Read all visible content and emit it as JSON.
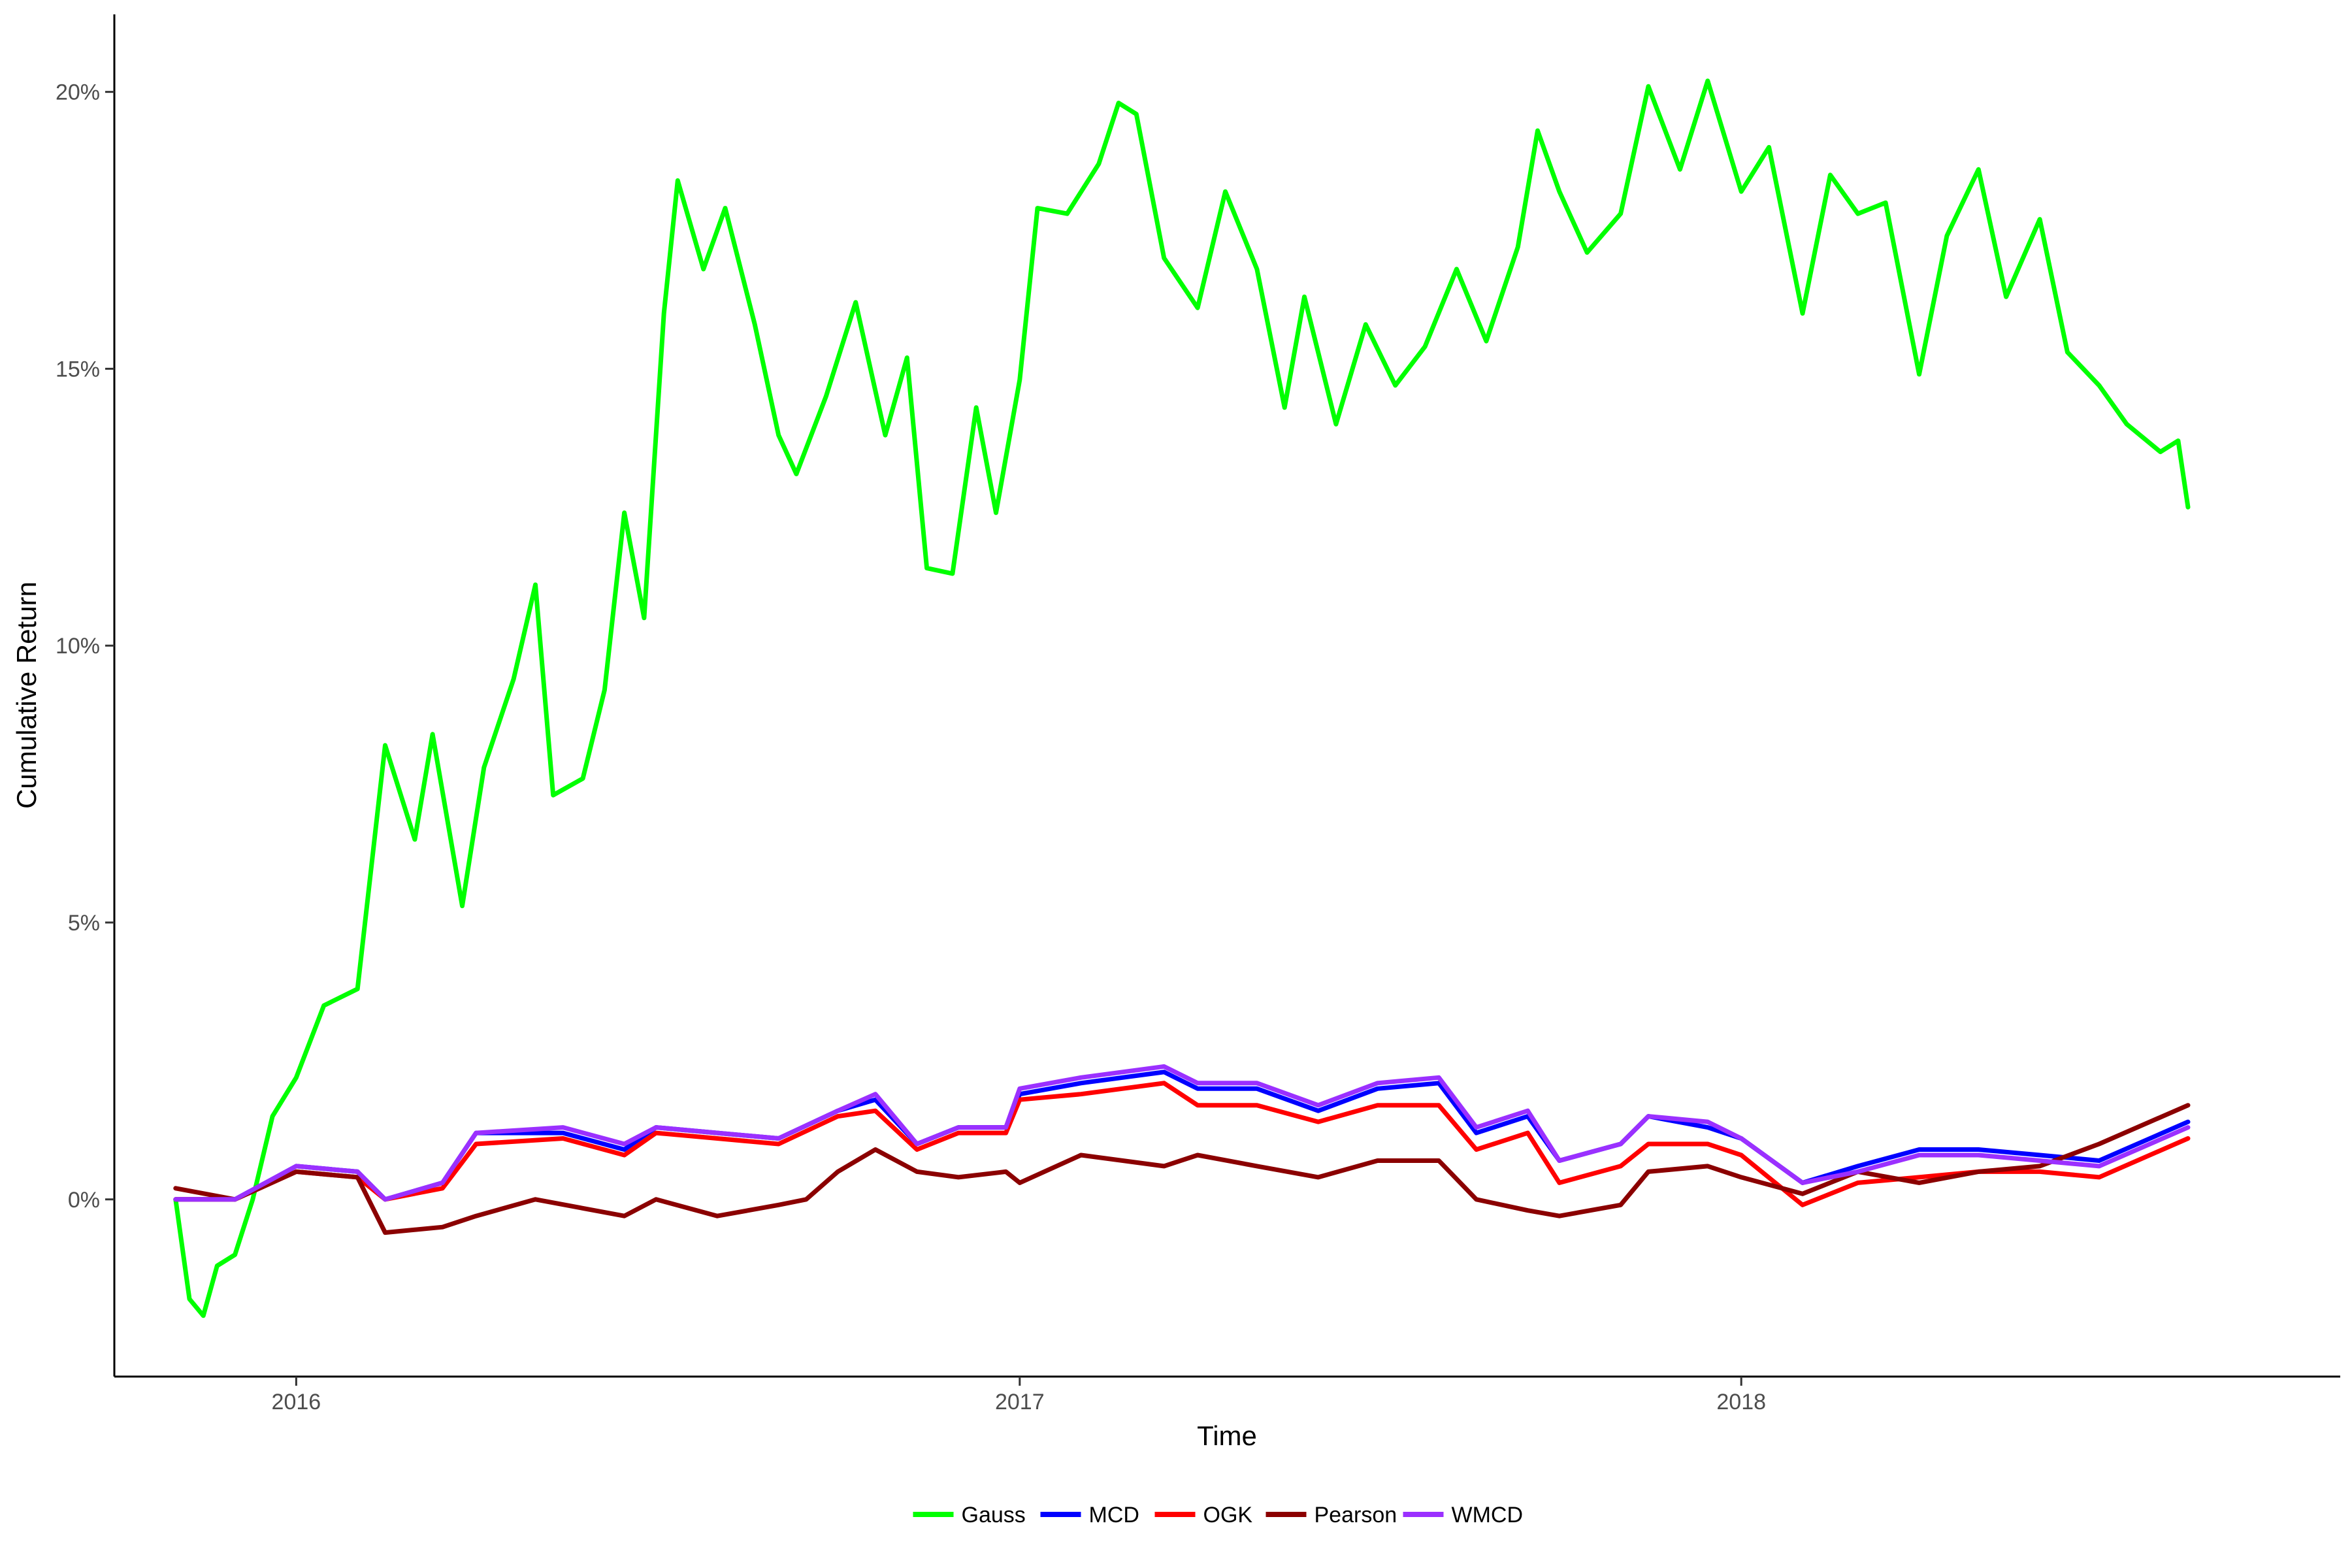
{
  "chart_data": {
    "type": "line",
    "title": "",
    "xlabel": "Time",
    "ylabel": "Cumulative Return",
    "x_ticks": [
      "2016",
      "2017",
      "2018"
    ],
    "y_ticks": [
      "0%",
      "5%",
      "10%",
      "15%",
      "20%"
    ],
    "xlim": [
      "2015-10-01",
      "2018-10-31"
    ],
    "ylim": [
      -3.2,
      21.4
    ],
    "grid": false,
    "legend_position": "bottom",
    "series": [
      {
        "name": "Gauss",
        "color": "#00ff00",
        "points": [
          [
            "2015-11-01",
            0.0
          ],
          [
            "2015-11-08",
            -1.8
          ],
          [
            "2015-11-15",
            -2.1
          ],
          [
            "2015-11-22",
            -1.2
          ],
          [
            "2015-12-01",
            -1.0
          ],
          [
            "2015-12-10",
            0.0
          ],
          [
            "2015-12-20",
            1.5
          ],
          [
            "2016-01-01",
            2.2
          ],
          [
            "2016-01-15",
            3.5
          ],
          [
            "2016-02-01",
            3.8
          ],
          [
            "2016-02-15",
            8.2
          ],
          [
            "2016-03-01",
            6.5
          ],
          [
            "2016-03-10",
            8.4
          ],
          [
            "2016-03-25",
            5.3
          ],
          [
            "2016-04-05",
            7.8
          ],
          [
            "2016-04-20",
            9.4
          ],
          [
            "2016-05-01",
            11.1
          ],
          [
            "2016-05-10",
            7.3
          ],
          [
            "2016-05-25",
            7.6
          ],
          [
            "2016-06-05",
            9.2
          ],
          [
            "2016-06-15",
            12.4
          ],
          [
            "2016-06-25",
            10.5
          ],
          [
            "2016-07-05",
            16.0
          ],
          [
            "2016-07-12",
            18.4
          ],
          [
            "2016-07-25",
            16.8
          ],
          [
            "2016-08-05",
            17.9
          ],
          [
            "2016-08-20",
            15.8
          ],
          [
            "2016-09-01",
            13.8
          ],
          [
            "2016-09-10",
            13.1
          ],
          [
            "2016-09-25",
            14.5
          ],
          [
            "2016-10-10",
            16.2
          ],
          [
            "2016-10-25",
            13.8
          ],
          [
            "2016-11-05",
            15.2
          ],
          [
            "2016-11-15",
            11.4
          ],
          [
            "2016-11-28",
            11.3
          ],
          [
            "2016-12-10",
            14.3
          ],
          [
            "2016-12-20",
            12.4
          ],
          [
            "2017-01-01",
            14.8
          ],
          [
            "2017-01-10",
            17.9
          ],
          [
            "2017-01-25",
            17.8
          ],
          [
            "2017-02-10",
            18.7
          ],
          [
            "2017-02-20",
            19.8
          ],
          [
            "2017-03-01",
            19.6
          ],
          [
            "2017-03-15",
            17.0
          ],
          [
            "2017-04-01",
            16.1
          ],
          [
            "2017-04-15",
            18.2
          ],
          [
            "2017-05-01",
            16.8
          ],
          [
            "2017-05-15",
            14.3
          ],
          [
            "2017-05-25",
            16.3
          ],
          [
            "2017-06-10",
            14.0
          ],
          [
            "2017-06-25",
            15.8
          ],
          [
            "2017-07-10",
            14.7
          ],
          [
            "2017-07-25",
            15.4
          ],
          [
            "2017-08-10",
            16.8
          ],
          [
            "2017-08-25",
            15.5
          ],
          [
            "2017-09-10",
            17.2
          ],
          [
            "2017-09-20",
            19.3
          ],
          [
            "2017-10-01",
            18.2
          ],
          [
            "2017-10-15",
            17.1
          ],
          [
            "2017-11-01",
            17.8
          ],
          [
            "2017-11-15",
            20.1
          ],
          [
            "2017-12-01",
            18.6
          ],
          [
            "2017-12-15",
            20.2
          ],
          [
            "2018-01-01",
            18.2
          ],
          [
            "2018-01-15",
            19.0
          ],
          [
            "2018-02-01",
            16.0
          ],
          [
            "2018-02-15",
            18.5
          ],
          [
            "2018-03-01",
            17.8
          ],
          [
            "2018-03-15",
            18.0
          ],
          [
            "2018-04-01",
            14.9
          ],
          [
            "2018-04-15",
            17.4
          ],
          [
            "2018-05-01",
            18.6
          ],
          [
            "2018-05-15",
            16.3
          ],
          [
            "2018-06-01",
            17.7
          ],
          [
            "2018-06-15",
            15.3
          ],
          [
            "2018-07-01",
            14.7
          ],
          [
            "2018-07-15",
            14.0
          ],
          [
            "2018-08-01",
            13.5
          ],
          [
            "2018-08-10",
            13.7
          ],
          [
            "2018-08-15",
            12.5
          ]
        ]
      },
      {
        "name": "MCD",
        "color": "#0000ff",
        "points": [
          [
            "2015-11-01",
            0.0
          ],
          [
            "2015-12-01",
            0.0
          ],
          [
            "2016-01-01",
            0.6
          ],
          [
            "2016-02-01",
            0.5
          ],
          [
            "2016-02-15",
            0.0
          ],
          [
            "2016-03-15",
            0.3
          ],
          [
            "2016-04-01",
            1.2
          ],
          [
            "2016-05-15",
            1.2
          ],
          [
            "2016-06-15",
            0.9
          ],
          [
            "2016-07-01",
            1.3
          ],
          [
            "2016-08-01",
            1.2
          ],
          [
            "2016-09-01",
            1.1
          ],
          [
            "2016-10-01",
            1.6
          ],
          [
            "2016-10-20",
            1.8
          ],
          [
            "2016-11-10",
            1.0
          ],
          [
            "2016-12-01",
            1.3
          ],
          [
            "2016-12-25",
            1.3
          ],
          [
            "2017-01-01",
            1.9
          ],
          [
            "2017-02-01",
            2.1
          ],
          [
            "2017-03-15",
            2.3
          ],
          [
            "2017-04-01",
            2.0
          ],
          [
            "2017-05-01",
            2.0
          ],
          [
            "2017-06-01",
            1.6
          ],
          [
            "2017-07-01",
            2.0
          ],
          [
            "2017-08-01",
            2.1
          ],
          [
            "2017-08-20",
            1.2
          ],
          [
            "2017-09-15",
            1.5
          ],
          [
            "2017-10-01",
            0.7
          ],
          [
            "2017-11-01",
            1.0
          ],
          [
            "2017-11-15",
            1.5
          ],
          [
            "2017-12-15",
            1.3
          ],
          [
            "2018-01-01",
            1.1
          ],
          [
            "2018-02-01",
            0.3
          ],
          [
            "2018-03-01",
            0.6
          ],
          [
            "2018-04-01",
            0.9
          ],
          [
            "2018-05-01",
            0.9
          ],
          [
            "2018-06-01",
            0.8
          ],
          [
            "2018-07-01",
            0.7
          ],
          [
            "2018-08-15",
            1.4
          ]
        ]
      },
      {
        "name": "OGK",
        "color": "#ff0000",
        "points": [
          [
            "2015-11-01",
            0.0
          ],
          [
            "2015-12-01",
            0.0
          ],
          [
            "2016-01-01",
            0.5
          ],
          [
            "2016-02-01",
            0.4
          ],
          [
            "2016-02-15",
            0.0
          ],
          [
            "2016-03-15",
            0.2
          ],
          [
            "2016-04-01",
            1.0
          ],
          [
            "2016-05-15",
            1.1
          ],
          [
            "2016-06-15",
            0.8
          ],
          [
            "2016-07-01",
            1.2
          ],
          [
            "2016-08-01",
            1.1
          ],
          [
            "2016-09-01",
            1.0
          ],
          [
            "2016-10-01",
            1.5
          ],
          [
            "2016-10-20",
            1.6
          ],
          [
            "2016-11-10",
            0.9
          ],
          [
            "2016-12-01",
            1.2
          ],
          [
            "2016-12-25",
            1.2
          ],
          [
            "2017-01-01",
            1.8
          ],
          [
            "2017-02-01",
            1.9
          ],
          [
            "2017-03-15",
            2.1
          ],
          [
            "2017-04-01",
            1.7
          ],
          [
            "2017-05-01",
            1.7
          ],
          [
            "2017-06-01",
            1.4
          ],
          [
            "2017-07-01",
            1.7
          ],
          [
            "2017-08-01",
            1.7
          ],
          [
            "2017-08-20",
            0.9
          ],
          [
            "2017-09-15",
            1.2
          ],
          [
            "2017-10-01",
            0.3
          ],
          [
            "2017-11-01",
            0.6
          ],
          [
            "2017-11-15",
            1.0
          ],
          [
            "2017-12-15",
            1.0
          ],
          [
            "2018-01-01",
            0.8
          ],
          [
            "2018-02-01",
            -0.1
          ],
          [
            "2018-03-01",
            0.3
          ],
          [
            "2018-04-01",
            0.4
          ],
          [
            "2018-05-01",
            0.5
          ],
          [
            "2018-06-01",
            0.5
          ],
          [
            "2018-07-01",
            0.4
          ],
          [
            "2018-08-15",
            1.1
          ]
        ]
      },
      {
        "name": "Pearson",
        "color": "#8b0000",
        "points": [
          [
            "2015-11-01",
            0.2
          ],
          [
            "2015-12-01",
            0.0
          ],
          [
            "2016-01-01",
            0.5
          ],
          [
            "2016-02-01",
            0.4
          ],
          [
            "2016-02-15",
            -0.6
          ],
          [
            "2016-03-15",
            -0.5
          ],
          [
            "2016-04-01",
            -0.3
          ],
          [
            "2016-05-01",
            0.0
          ],
          [
            "2016-06-15",
            -0.3
          ],
          [
            "2016-07-01",
            0.0
          ],
          [
            "2016-08-01",
            -0.3
          ],
          [
            "2016-09-01",
            -0.1
          ],
          [
            "2016-09-15",
            0.0
          ],
          [
            "2016-10-01",
            0.5
          ],
          [
            "2016-10-20",
            0.9
          ],
          [
            "2016-11-10",
            0.5
          ],
          [
            "2016-12-01",
            0.4
          ],
          [
            "2016-12-25",
            0.5
          ],
          [
            "2017-01-01",
            0.3
          ],
          [
            "2017-02-01",
            0.8
          ],
          [
            "2017-03-15",
            0.6
          ],
          [
            "2017-04-01",
            0.8
          ],
          [
            "2017-05-01",
            0.6
          ],
          [
            "2017-06-01",
            0.4
          ],
          [
            "2017-07-01",
            0.7
          ],
          [
            "2017-08-01",
            0.7
          ],
          [
            "2017-08-20",
            0.0
          ],
          [
            "2017-09-15",
            -0.2
          ],
          [
            "2017-10-01",
            -0.3
          ],
          [
            "2017-11-01",
            -0.1
          ],
          [
            "2017-11-15",
            0.5
          ],
          [
            "2017-12-15",
            0.6
          ],
          [
            "2018-01-01",
            0.4
          ],
          [
            "2018-02-01",
            0.1
          ],
          [
            "2018-03-01",
            0.5
          ],
          [
            "2018-04-01",
            0.3
          ],
          [
            "2018-05-01",
            0.5
          ],
          [
            "2018-06-01",
            0.6
          ],
          [
            "2018-07-01",
            1.0
          ],
          [
            "2018-08-15",
            1.7
          ]
        ]
      },
      {
        "name": "WMCD",
        "color": "#9b30ff",
        "points": [
          [
            "2015-11-01",
            0.0
          ],
          [
            "2015-12-01",
            0.0
          ],
          [
            "2016-01-01",
            0.6
          ],
          [
            "2016-02-01",
            0.5
          ],
          [
            "2016-02-15",
            0.0
          ],
          [
            "2016-03-15",
            0.3
          ],
          [
            "2016-04-01",
            1.2
          ],
          [
            "2016-05-15",
            1.3
          ],
          [
            "2016-06-15",
            1.0
          ],
          [
            "2016-07-01",
            1.3
          ],
          [
            "2016-08-01",
            1.2
          ],
          [
            "2016-09-01",
            1.1
          ],
          [
            "2016-10-01",
            1.6
          ],
          [
            "2016-10-20",
            1.9
          ],
          [
            "2016-11-10",
            1.0
          ],
          [
            "2016-12-01",
            1.3
          ],
          [
            "2016-12-25",
            1.3
          ],
          [
            "2017-01-01",
            2.0
          ],
          [
            "2017-02-01",
            2.2
          ],
          [
            "2017-03-15",
            2.4
          ],
          [
            "2017-04-01",
            2.1
          ],
          [
            "2017-05-01",
            2.1
          ],
          [
            "2017-06-01",
            1.7
          ],
          [
            "2017-07-01",
            2.1
          ],
          [
            "2017-08-01",
            2.2
          ],
          [
            "2017-08-20",
            1.3
          ],
          [
            "2017-09-15",
            1.6
          ],
          [
            "2017-10-01",
            0.7
          ],
          [
            "2017-11-01",
            1.0
          ],
          [
            "2017-11-15",
            1.5
          ],
          [
            "2017-12-15",
            1.4
          ],
          [
            "2018-01-01",
            1.1
          ],
          [
            "2018-02-01",
            0.3
          ],
          [
            "2018-03-01",
            0.5
          ],
          [
            "2018-04-01",
            0.8
          ],
          [
            "2018-05-01",
            0.8
          ],
          [
            "2018-06-01",
            0.7
          ],
          [
            "2018-07-01",
            0.6
          ],
          [
            "2018-08-15",
            1.3
          ]
        ]
      }
    ]
  }
}
